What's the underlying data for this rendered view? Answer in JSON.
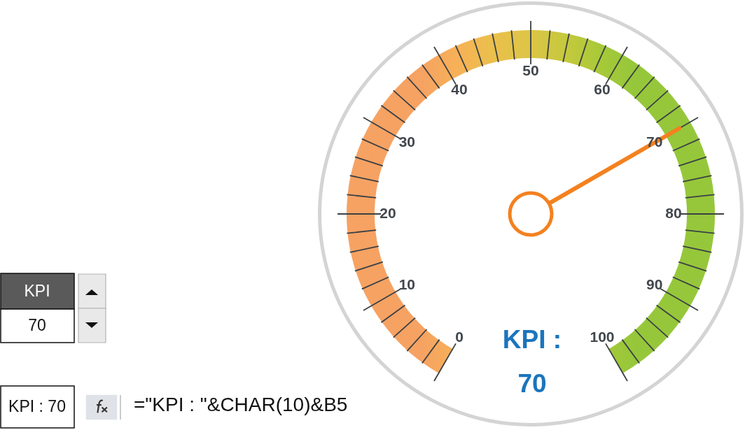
{
  "chart_data": {
    "type": "other",
    "categories": [
      "0",
      null,
      null,
      null,
      null,
      "10",
      null,
      null,
      null,
      null,
      "20",
      null,
      null,
      null,
      null,
      "30",
      null,
      null,
      null,
      null,
      "40",
      null,
      null,
      null,
      null,
      "50",
      null,
      null,
      null,
      null,
      "60",
      null,
      null,
      null,
      null,
      "70",
      null,
      null,
      null,
      null,
      "80",
      null,
      null,
      null,
      null,
      "90",
      null,
      null,
      null,
      null,
      "100"
    ],
    "needle": "70",
    "series": [
      {
        "color": "#f4811f",
        "values": [
          null,
          null,
          null,
          null,
          null,
          null,
          null,
          null,
          null,
          null,
          null,
          null,
          null,
          null,
          null,
          null,
          null,
          null,
          null,
          null,
          null,
          null,
          null,
          null,
          null,
          null,
          null,
          null,
          null,
          null,
          null,
          null,
          null,
          null,
          null,
          70,
          null,
          null,
          null,
          null,
          null,
          null,
          null,
          null,
          null,
          null,
          null,
          null,
          null,
          null,
          null
        ]
      }
    ],
    "data_labels": true,
    "annotations": [
      "KPI :",
      "KPI",
      "70",
      "KPI : 70",
      "=\"KPI : \"&CHAR(10)&B5"
    ]
  }
}
